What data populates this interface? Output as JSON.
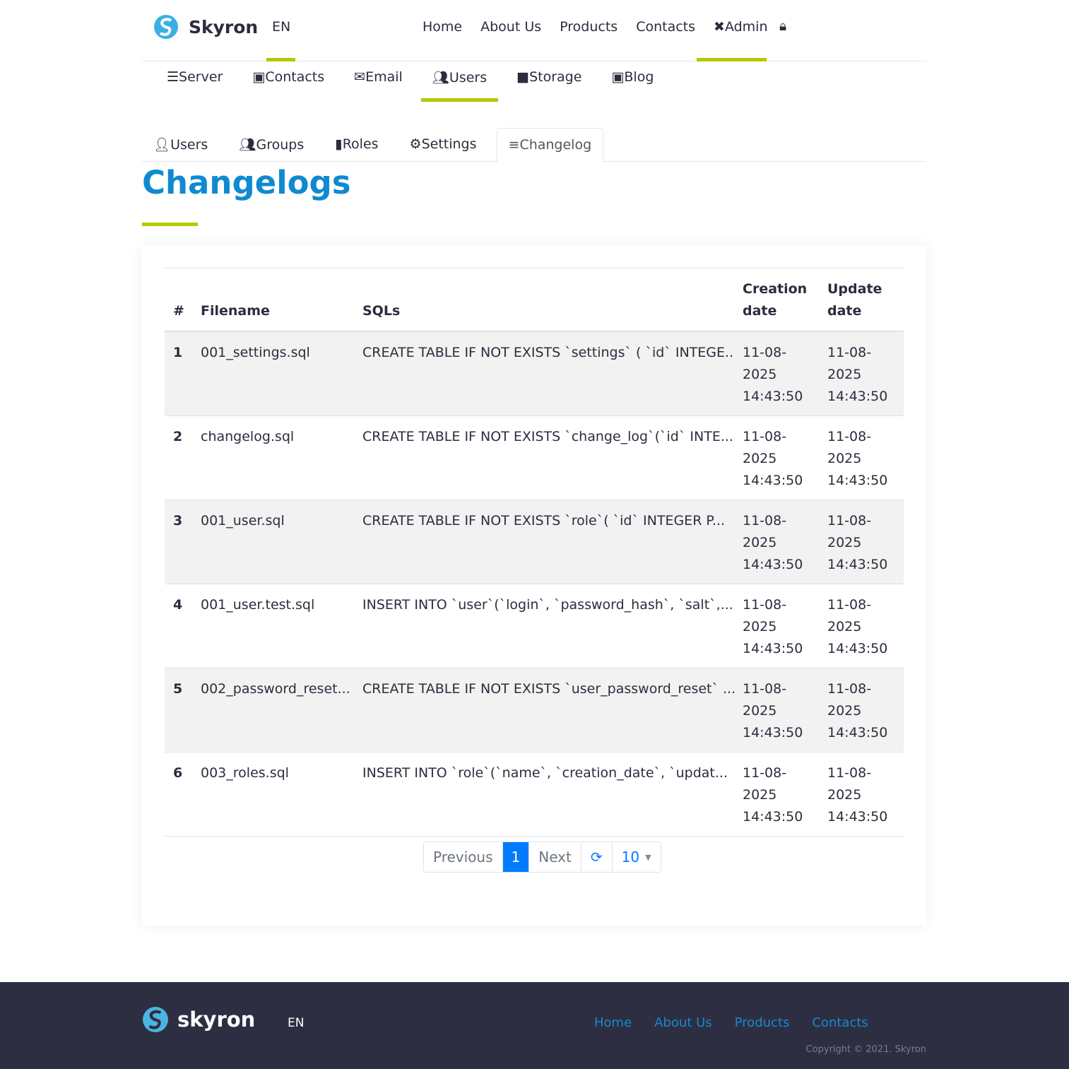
{
  "header": {
    "brand": "Skyron",
    "lang": "EN",
    "nav": [
      "Home",
      "About Us",
      "Products",
      "Contacts",
      "Admin"
    ]
  },
  "subnav": [
    "Server",
    "Contacts",
    "Email",
    "Users",
    "Storage",
    "Blog"
  ],
  "tabs": [
    "Users",
    "Groups",
    "Roles",
    "Settings",
    "Changelog"
  ],
  "page_title": "Changelogs",
  "table": {
    "headers": [
      "#",
      "Filename",
      "SQLs",
      "Creation date",
      "Update date"
    ],
    "rows": [
      [
        "1",
        "001_settings.sql",
        "CREATE TABLE IF NOT EXISTS `settings` ( `id` INTEGE...",
        "11-08-2025 14:43:50",
        "11-08-2025 14:43:50"
      ],
      [
        "2",
        "changelog.sql",
        "CREATE TABLE IF NOT EXISTS `change_log`(`id` INTE...",
        "11-08-2025 14:43:50",
        "11-08-2025 14:43:50"
      ],
      [
        "3",
        "001_user.sql",
        "CREATE TABLE IF NOT EXISTS `role`( `id` INTEGER P...",
        "11-08-2025 14:43:50",
        "11-08-2025 14:43:50"
      ],
      [
        "4",
        "001_user.test.sql",
        "INSERT INTO `user`(`login`, `password_hash`, `salt`,...",
        "11-08-2025 14:43:50",
        "11-08-2025 14:43:50"
      ],
      [
        "5",
        "002_password_reset...",
        "CREATE TABLE IF NOT EXISTS `user_password_reset` ...",
        "11-08-2025 14:43:50",
        "11-08-2025 14:43:50"
      ],
      [
        "6",
        "003_roles.sql",
        "INSERT INTO `role`(`name`, `creation_date`, `updat...",
        "11-08-2025 14:43:50",
        "11-08-2025 14:43:50"
      ]
    ]
  },
  "pager": {
    "previous": "Previous",
    "current": "1",
    "next": "Next",
    "page_size": "10"
  },
  "footer": {
    "brand": "skyron",
    "lang": "EN",
    "links": [
      "Home",
      "About Us",
      "Products",
      "Contacts"
    ],
    "copyright": "Copyright © 2021. Skyron"
  },
  "colors": {
    "accent": "#b5c800",
    "title": "#0f8ad0",
    "footer_bg": "#2d2e41",
    "primary": "#007bff"
  }
}
